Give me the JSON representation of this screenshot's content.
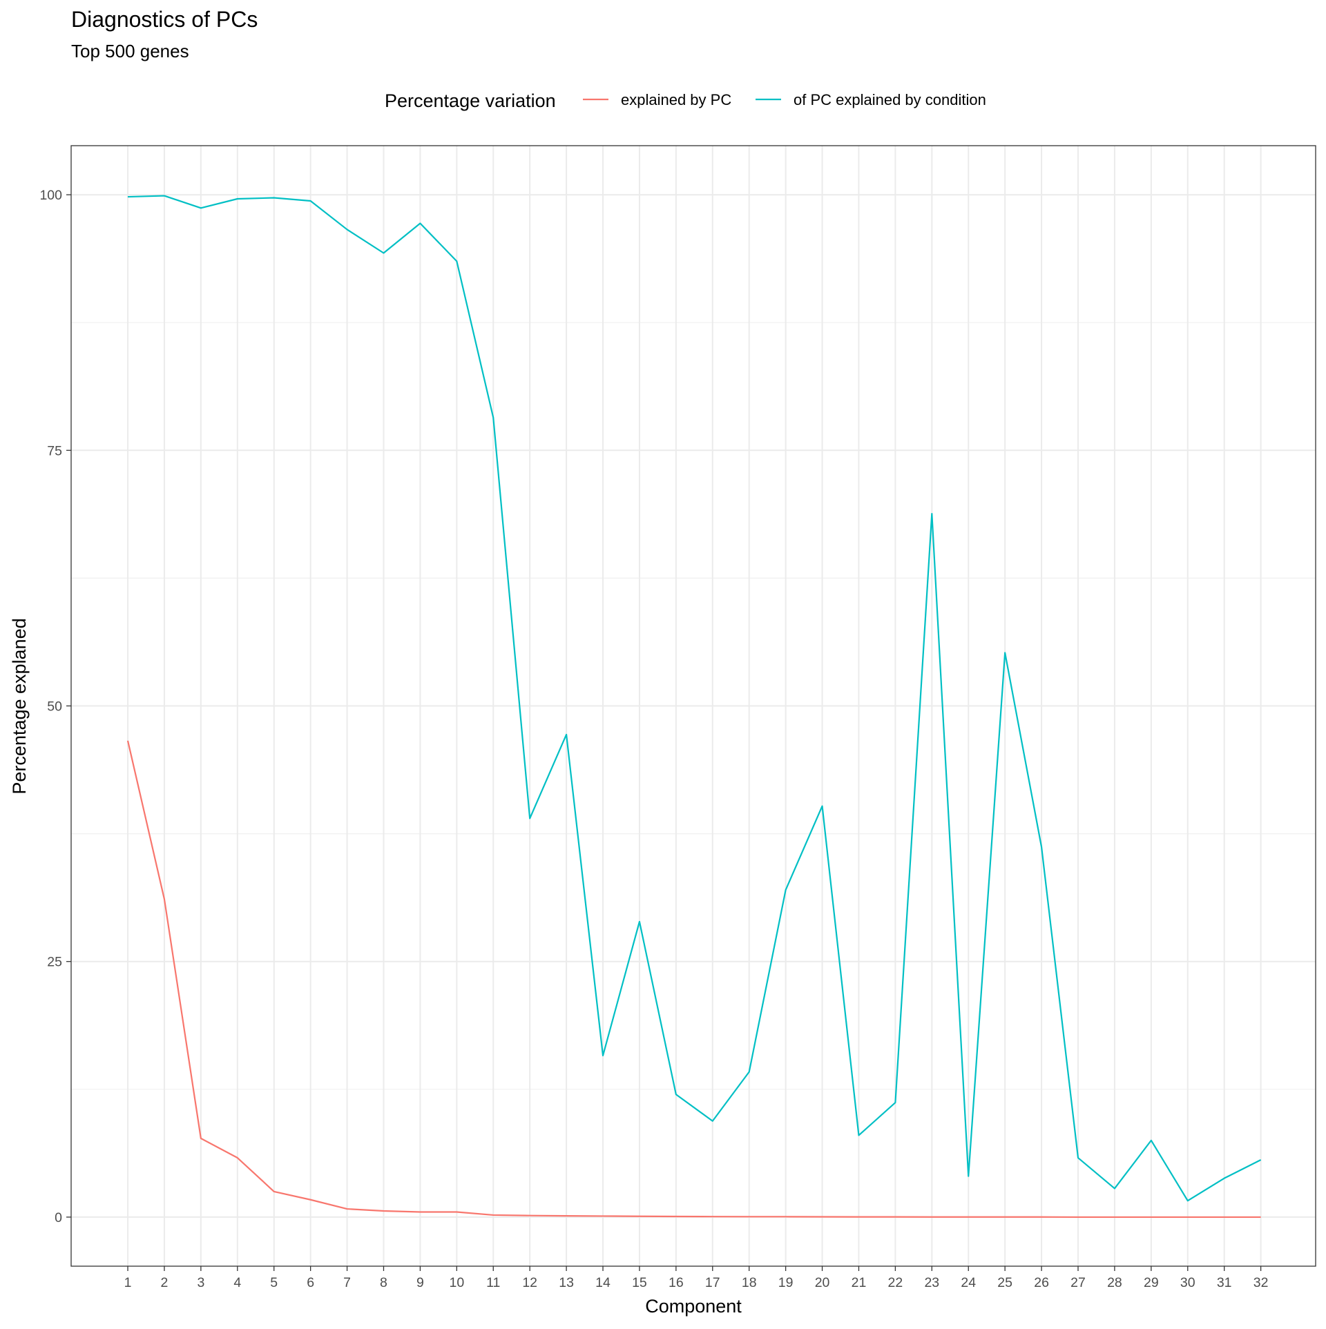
{
  "chart_data": {
    "type": "line",
    "title": "Diagnostics of PCs",
    "subtitle": "Top 500 genes",
    "xlabel": "Component",
    "ylabel": "Percentage explaned",
    "legend": {
      "title": "Percentage variation",
      "position": "top",
      "entries": [
        "explained by PC",
        "of PC explained by condition"
      ]
    },
    "x": [
      1,
      2,
      3,
      4,
      5,
      6,
      7,
      8,
      9,
      10,
      11,
      12,
      13,
      14,
      15,
      16,
      17,
      18,
      19,
      20,
      21,
      22,
      23,
      24,
      25,
      26,
      27,
      28,
      29,
      30,
      31,
      32
    ],
    "x_tick_labels": [
      "1",
      "2",
      "3",
      "4",
      "5",
      "6",
      "7",
      "8",
      "9",
      "10",
      "11",
      "12",
      "13",
      "14",
      "15",
      "16",
      "17",
      "18",
      "19",
      "20",
      "21",
      "22",
      "23",
      "24",
      "25",
      "26",
      "27",
      "28",
      "29",
      "30",
      "31",
      "32"
    ],
    "y_ticks": [
      0,
      25,
      50,
      75,
      100
    ],
    "y_tick_labels": [
      "0",
      "25",
      "50",
      "75",
      "100"
    ],
    "xlim": [
      -0.55,
      33.5
    ],
    "ylim": [
      -4.8,
      104.8
    ],
    "grid": true,
    "series": [
      {
        "name": "explained by PC",
        "color": "#F8766D",
        "values": [
          46.6,
          31.1,
          7.7,
          5.8,
          2.5,
          1.7,
          0.8,
          0.6,
          0.5,
          0.5,
          0.2,
          0.15,
          0.12,
          0.1,
          0.08,
          0.06,
          0.05,
          0.04,
          0.04,
          0.03,
          0.02,
          0.02,
          0.01,
          0.01,
          0.01,
          0.01,
          0.0,
          0.0,
          0.0,
          0.0,
          0.0,
          0.0
        ]
      },
      {
        "name": "of PC explained by condition",
        "color": "#00BFC4",
        "values": [
          99.8,
          99.9,
          98.7,
          99.6,
          99.7,
          99.4,
          96.6,
          94.3,
          97.2,
          93.5,
          78.2,
          39.0,
          47.2,
          15.8,
          28.9,
          12.0,
          9.4,
          14.2,
          32.0,
          40.2,
          8.0,
          11.2,
          68.8,
          4.0,
          55.2,
          36.2,
          5.8,
          2.8,
          7.5,
          1.6,
          3.8,
          5.6
        ]
      }
    ]
  }
}
